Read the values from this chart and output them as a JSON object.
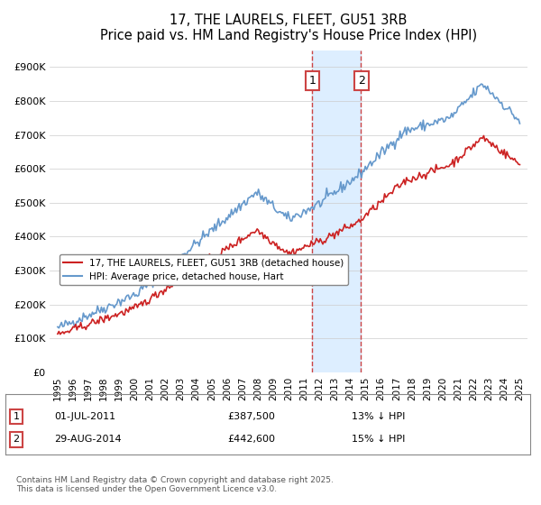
{
  "title": "17, THE LAURELS, FLEET, GU51 3RB",
  "subtitle": "Price paid vs. HM Land Registry's House Price Index (HPI)",
  "ylabel": "",
  "ylim": [
    0,
    950000
  ],
  "yticks": [
    0,
    100000,
    200000,
    300000,
    400000,
    500000,
    600000,
    700000,
    800000,
    900000
  ],
  "ytick_labels": [
    "£0",
    "£100K",
    "£200K",
    "£300K",
    "£400K",
    "£500K",
    "£600K",
    "£700K",
    "£800K",
    "£900K"
  ],
  "hpi_color": "#6699cc",
  "price_color": "#cc2222",
  "transaction1_year": 2011.5,
  "transaction2_year": 2014.67,
  "transaction1_price": 387500,
  "transaction2_price": 442600,
  "shaded_color": "#ddeeff",
  "legend_label1": "17, THE LAURELS, FLEET, GU51 3RB (detached house)",
  "legend_label2": "HPI: Average price, detached house, Hart",
  "annotation1_label": "1",
  "annotation2_label": "2",
  "table1": "1    01-JUL-2011    £387,500    13% ↓ HPI",
  "table2": "2    29-AUG-2014    £442,600    15% ↓ HPI",
  "footer": "Contains HM Land Registry data © Crown copyright and database right 2025.\nThis data is licensed under the Open Government Licence v3.0.",
  "background_color": "#f9f9f9"
}
